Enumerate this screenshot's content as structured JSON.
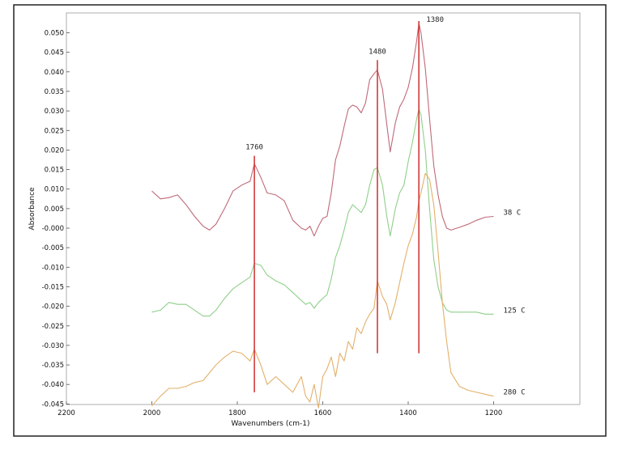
{
  "chart_data": {
    "type": "line",
    "xlabel": "Wavenumbers (cm-1)",
    "ylabel": "Absorbance",
    "xlim": [
      2200,
      1000
    ],
    "ylim": [
      -0.046,
      0.053
    ],
    "x_ticks": [
      "2200",
      "2000",
      "1800",
      "1600",
      "1400",
      "1200"
    ],
    "y_ticks": [
      "0.050",
      "0.045",
      "0.040",
      "0.035",
      "0.030",
      "0.025",
      "0.020",
      "0.015",
      "0.010",
      "0.005",
      "-0.000",
      "-0.005",
      "-0.010",
      "-0.015",
      "-0.020",
      "-0.025",
      "-0.030",
      "-0.035",
      "-0.040",
      "-0.045"
    ],
    "grid": false,
    "peaks": [
      {
        "label": "1760",
        "x": 1760,
        "y_top": 0.0185,
        "y_bottom": -0.042
      },
      {
        "label": "1480",
        "x": 1472,
        "y_top": 0.043,
        "y_bottom": -0.032
      },
      {
        "label": "1380",
        "x": 1375,
        "y_top": 0.053,
        "y_bottom": -0.032
      }
    ],
    "series": [
      {
        "name": "38  C",
        "color": "#c06a78",
        "x": [
          2000,
          1980,
          1960,
          1940,
          1920,
          1900,
          1880,
          1865,
          1850,
          1830,
          1810,
          1790,
          1770,
          1760,
          1745,
          1730,
          1710,
          1690,
          1670,
          1650,
          1640,
          1630,
          1620,
          1610,
          1600,
          1590,
          1580,
          1570,
          1560,
          1550,
          1540,
          1530,
          1520,
          1510,
          1500,
          1490,
          1480,
          1472,
          1460,
          1450,
          1442,
          1430,
          1420,
          1410,
          1400,
          1390,
          1380,
          1375,
          1370,
          1360,
          1350,
          1340,
          1330,
          1320,
          1310,
          1300,
          1280,
          1260,
          1240,
          1220,
          1200
        ],
        "y": [
          0.0095,
          0.0075,
          0.0078,
          0.0085,
          0.006,
          0.003,
          0.0005,
          -0.0005,
          0.001,
          0.005,
          0.0095,
          0.011,
          0.012,
          0.0165,
          0.013,
          0.009,
          0.0085,
          0.007,
          0.002,
          0.0,
          -0.0005,
          0.0005,
          -0.002,
          0.0005,
          0.0025,
          0.003,
          0.009,
          0.0175,
          0.021,
          0.026,
          0.0305,
          0.0315,
          0.031,
          0.0295,
          0.032,
          0.038,
          0.0395,
          0.0405,
          0.0355,
          0.0265,
          0.0195,
          0.027,
          0.031,
          0.033,
          0.036,
          0.041,
          0.048,
          0.0525,
          0.05,
          0.041,
          0.028,
          0.016,
          0.0085,
          0.003,
          0.0,
          -0.0005,
          0.0002,
          0.001,
          0.002,
          0.0028,
          0.003
        ]
      },
      {
        "name": "125  C",
        "color": "#8fcf8a",
        "x": [
          2000,
          1980,
          1960,
          1940,
          1920,
          1900,
          1880,
          1865,
          1850,
          1830,
          1810,
          1790,
          1770,
          1760,
          1745,
          1730,
          1710,
          1690,
          1670,
          1650,
          1640,
          1630,
          1620,
          1610,
          1600,
          1590,
          1580,
          1570,
          1560,
          1550,
          1540,
          1530,
          1520,
          1510,
          1500,
          1490,
          1480,
          1472,
          1460,
          1450,
          1442,
          1430,
          1420,
          1410,
          1400,
          1390,
          1380,
          1375,
          1370,
          1360,
          1350,
          1340,
          1330,
          1320,
          1310,
          1300,
          1280,
          1260,
          1240,
          1220,
          1200
        ],
        "y": [
          -0.0215,
          -0.021,
          -0.019,
          -0.0195,
          -0.0195,
          -0.021,
          -0.0225,
          -0.0225,
          -0.021,
          -0.018,
          -0.0155,
          -0.014,
          -0.0125,
          -0.009,
          -0.0095,
          -0.012,
          -0.0135,
          -0.0145,
          -0.0165,
          -0.0185,
          -0.0195,
          -0.019,
          -0.0205,
          -0.019,
          -0.018,
          -0.017,
          -0.013,
          -0.0075,
          -0.0045,
          -0.0005,
          0.004,
          0.006,
          0.005,
          0.004,
          0.006,
          0.011,
          0.015,
          0.0155,
          0.011,
          0.003,
          -0.002,
          0.005,
          0.009,
          0.011,
          0.017,
          0.022,
          0.028,
          0.0305,
          0.029,
          0.02,
          0.005,
          -0.008,
          -0.015,
          -0.019,
          -0.021,
          -0.0215,
          -0.0215,
          -0.0215,
          -0.0215,
          -0.022,
          -0.022
        ]
      },
      {
        "name": "280  C",
        "color": "#e3b06a",
        "x": [
          2000,
          1980,
          1960,
          1940,
          1920,
          1900,
          1880,
          1865,
          1850,
          1830,
          1810,
          1790,
          1770,
          1760,
          1745,
          1730,
          1710,
          1690,
          1670,
          1650,
          1640,
          1630,
          1620,
          1610,
          1600,
          1590,
          1580,
          1570,
          1560,
          1550,
          1540,
          1530,
          1520,
          1510,
          1500,
          1490,
          1480,
          1472,
          1460,
          1450,
          1442,
          1430,
          1420,
          1410,
          1400,
          1390,
          1380,
          1375,
          1370,
          1360,
          1350,
          1340,
          1330,
          1320,
          1310,
          1300,
          1280,
          1260,
          1240,
          1220,
          1200
        ],
        "y": [
          -0.0455,
          -0.043,
          -0.041,
          -0.041,
          -0.0405,
          -0.0395,
          -0.039,
          -0.037,
          -0.035,
          -0.033,
          -0.0315,
          -0.032,
          -0.034,
          -0.031,
          -0.035,
          -0.04,
          -0.038,
          -0.04,
          -0.042,
          -0.038,
          -0.043,
          -0.0445,
          -0.04,
          -0.046,
          -0.038,
          -0.036,
          -0.033,
          -0.038,
          -0.032,
          -0.034,
          -0.029,
          -0.031,
          -0.0255,
          -0.027,
          -0.024,
          -0.022,
          -0.0205,
          -0.0135,
          -0.0175,
          -0.0195,
          -0.0235,
          -0.019,
          -0.014,
          -0.009,
          -0.0045,
          -0.0015,
          0.003,
          0.007,
          0.009,
          0.014,
          0.0125,
          0.006,
          -0.006,
          -0.019,
          -0.029,
          -0.037,
          -0.0405,
          -0.0415,
          -0.042,
          -0.0425,
          -0.043
        ]
      }
    ]
  }
}
